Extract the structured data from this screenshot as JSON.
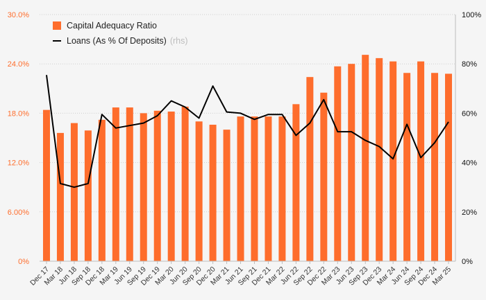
{
  "colors": {
    "bar": "#fe6d2c",
    "line": "#000000",
    "left_axis_text": "#fe6d2c",
    "right_axis_text": "#111111",
    "grid": "#d0d0d0",
    "background": "#f5f5f5"
  },
  "legend": {
    "bar_label": "Capital Adequacy Ratio",
    "line_label": "Loans (As % Of Deposits)",
    "line_note": "(rhs)"
  },
  "chart_data": {
    "type": "bar",
    "categories": [
      "Dec 17",
      "Mar 18",
      "Jun 18",
      "Sep 18",
      "Dec 18",
      "Mar 19",
      "Jun 19",
      "Sep 19",
      "Dec 19",
      "Mar 20",
      "Jun 20",
      "Sep 20",
      "Dec 20",
      "Mar 21",
      "Jun 21",
      "Sep 21",
      "Dec 21",
      "Mar 22",
      "Jun 22",
      "Sep 22",
      "Dec 22",
      "Mar 23",
      "Jun 23",
      "Sep 23",
      "Dec 23",
      "Mar 24",
      "Jun 24",
      "Sep 24",
      "Dec 24",
      "Mar 25"
    ],
    "series": [
      {
        "name": "Capital Adequacy Ratio",
        "type": "bar",
        "axis": "left",
        "values": [
          18.4,
          15.6,
          16.8,
          15.9,
          17.2,
          18.7,
          18.7,
          18.0,
          18.3,
          18.2,
          18.8,
          17.0,
          16.6,
          16.0,
          17.6,
          17.6,
          17.6,
          17.6,
          19.1,
          22.4,
          20.5,
          23.7,
          24.0,
          25.1,
          24.7,
          24.3,
          22.9,
          24.3,
          22.9,
          22.8
        ]
      },
      {
        "name": "Loans (As % Of Deposits)",
        "type": "line",
        "axis": "right",
        "values": [
          75.5,
          31.5,
          30.0,
          31.5,
          59.5,
          54.0,
          55.0,
          56.0,
          59.0,
          65.0,
          62.5,
          58.0,
          71.0,
          60.5,
          60.0,
          57.5,
          59.5,
          59.5,
          51.0,
          56.0,
          65.5,
          52.5,
          52.5,
          49.0,
          46.5,
          41.5,
          55.5,
          42.0,
          48.0,
          56.5
        ]
      }
    ],
    "y_left": {
      "ylim": [
        0,
        30
      ],
      "ticks": [
        "0%",
        "6.00%",
        "12.0%",
        "18.0%",
        "24.0%",
        "30.0%"
      ]
    },
    "y_right": {
      "ylim": [
        0,
        100
      ],
      "ticks": [
        "0%",
        "20%",
        "40%",
        "60%",
        "80%",
        "100%"
      ]
    },
    "grid": "horizontal",
    "legend_position": "top-left"
  }
}
